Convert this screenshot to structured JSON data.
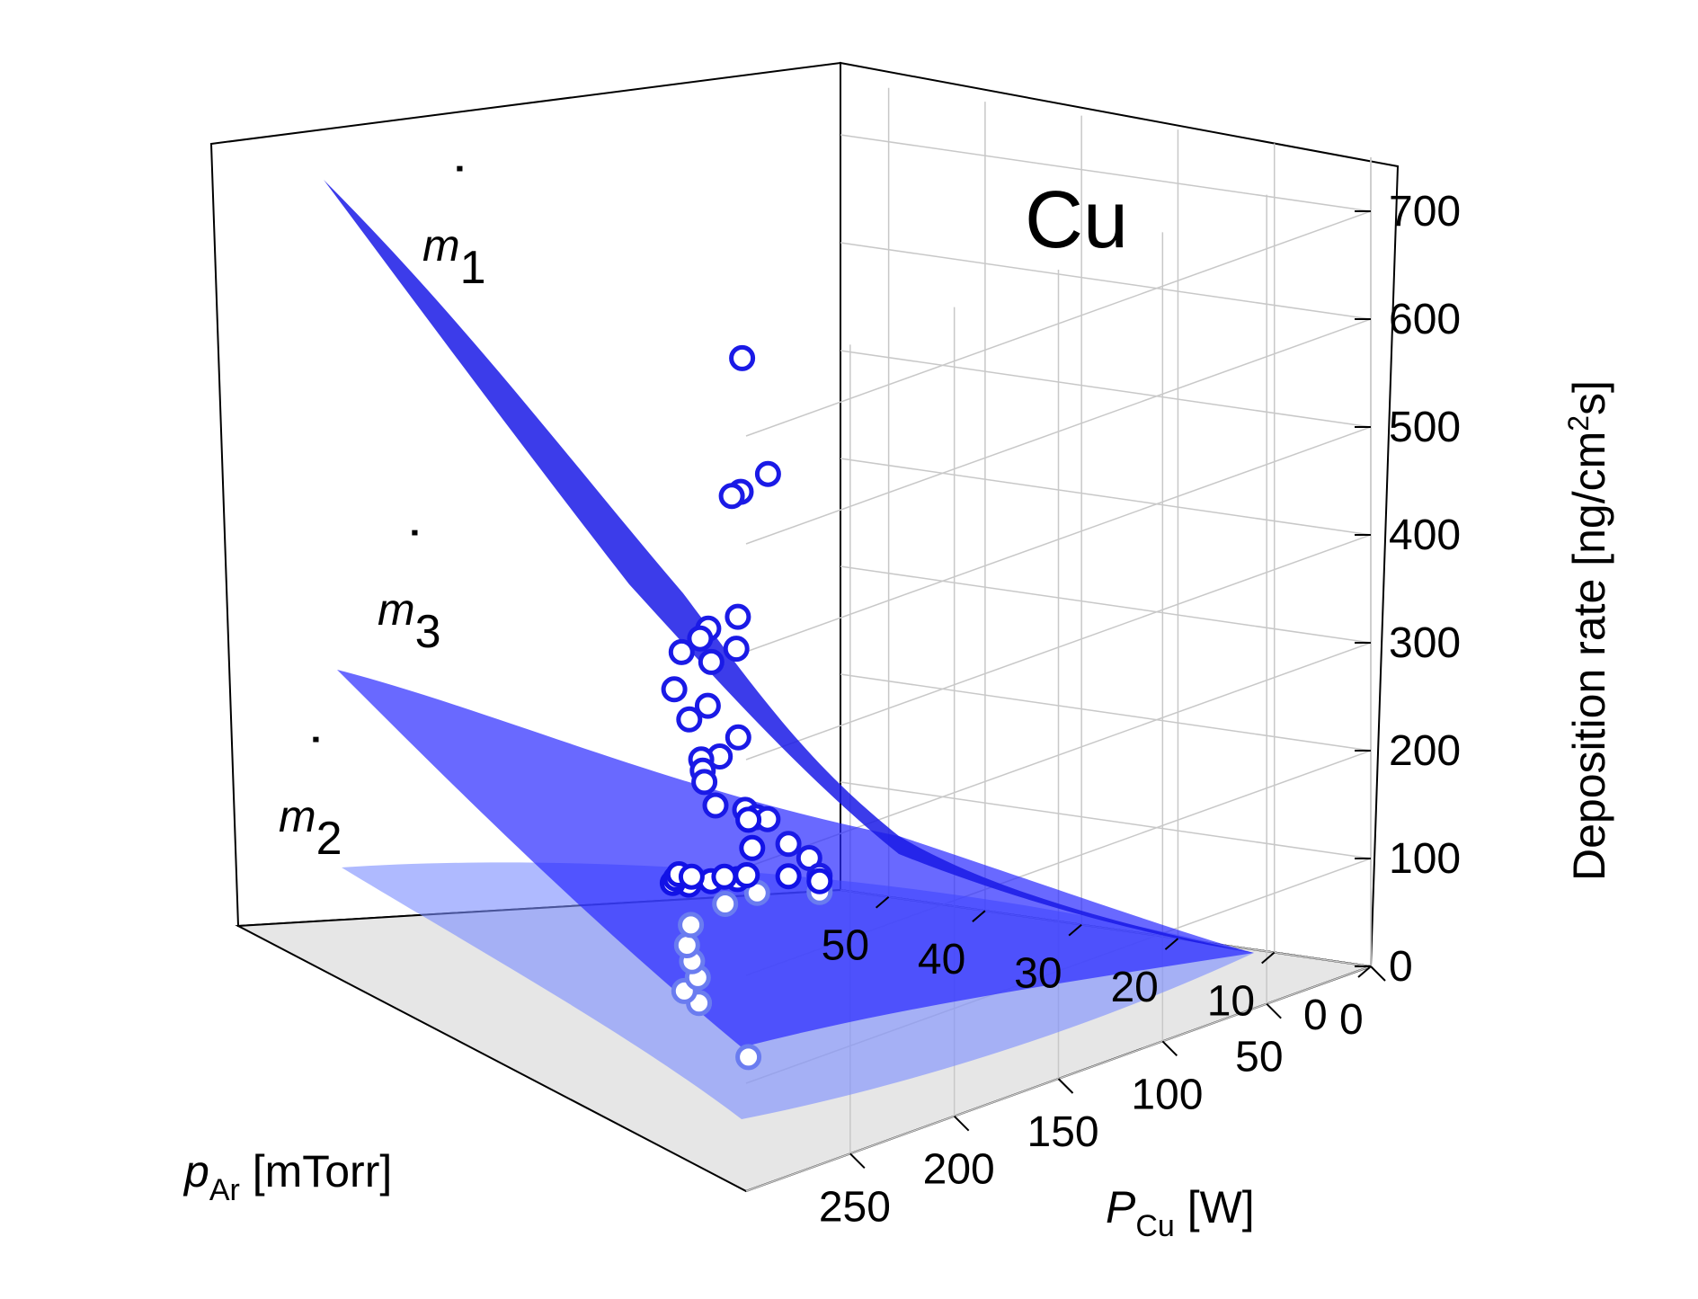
{
  "chart_data": {
    "type": "scatter3d",
    "element_label": "Cu",
    "x_axis": {
      "label_main": "P",
      "label_sub": "Cu",
      "label_unit": " [W]",
      "ticks": [
        "0",
        "50",
        "100",
        "150",
        "200",
        "250"
      ],
      "range": [
        0,
        300
      ]
    },
    "y_axis": {
      "label_main": "p",
      "label_sub": "Ar",
      "label_unit": " [mTorr]",
      "ticks": [
        "0",
        "10",
        "20",
        "30",
        "40",
        "50"
      ],
      "range": [
        0,
        55
      ]
    },
    "z_axis": {
      "label": "Deposition rate [ng/cm",
      "label_sup": "2",
      "label_end": "s]",
      "ticks": [
        "0",
        "100",
        "200",
        "300",
        "400",
        "500",
        "600",
        "700"
      ],
      "range": [
        0,
        750
      ]
    },
    "grid": true,
    "series": [
      {
        "name": "m",
        "subscript": "1",
        "color": "#1a1ae6",
        "marker": "open-circle",
        "points": [
          [
            288,
            3,
            760
          ],
          [
            220,
            15,
            590
          ],
          [
            210,
            20,
            560
          ],
          [
            205,
            22,
            550
          ],
          [
            165,
            30,
            400
          ],
          [
            170,
            32,
            390
          ],
          [
            175,
            28,
            380
          ],
          [
            160,
            35,
            370
          ],
          [
            155,
            38,
            350
          ],
          [
            150,
            36,
            340
          ],
          [
            140,
            42,
            300
          ],
          [
            110,
            45,
            260
          ],
          [
            105,
            48,
            240
          ],
          [
            100,
            44,
            225
          ],
          [
            95,
            47,
            200
          ],
          [
            90,
            50,
            190
          ],
          [
            80,
            52,
            170
          ],
          [
            70,
            54,
            150
          ],
          [
            60,
            55,
            120
          ],
          [
            55,
            53,
            115
          ],
          [
            45,
            54,
            100
          ],
          [
            35,
            55,
            90
          ],
          [
            25,
            55,
            60
          ],
          [
            15,
            55,
            40
          ],
          [
            10,
            55,
            20
          ]
        ]
      },
      {
        "name": "m",
        "subscript": "2",
        "color": "#6a7cf0",
        "marker": "open-circle",
        "points": [
          [
            285,
            3,
            110
          ],
          [
            230,
            20,
            100
          ],
          [
            200,
            28,
            80
          ],
          [
            175,
            32,
            70
          ],
          [
            150,
            38,
            60
          ],
          [
            120,
            45,
            45
          ],
          [
            95,
            50,
            40
          ],
          [
            60,
            54,
            30
          ],
          [
            40,
            55,
            25
          ],
          [
            10,
            55,
            5
          ]
        ]
      },
      {
        "name": "m",
        "subscript": "3",
        "color": "#1212e6",
        "marker": "open-circle",
        "points": [
          [
            285,
            3,
            330
          ],
          [
            260,
            8,
            280
          ],
          [
            230,
            16,
            220
          ],
          [
            215,
            22,
            200
          ],
          [
            190,
            30,
            175
          ],
          [
            170,
            34,
            150
          ],
          [
            150,
            40,
            130
          ],
          [
            130,
            44,
            115
          ],
          [
            110,
            48,
            100
          ],
          [
            90,
            51,
            80
          ],
          [
            65,
            53,
            60
          ],
          [
            45,
            55,
            45
          ],
          [
            25,
            55,
            30
          ],
          [
            10,
            55,
            15
          ]
        ]
      }
    ]
  }
}
